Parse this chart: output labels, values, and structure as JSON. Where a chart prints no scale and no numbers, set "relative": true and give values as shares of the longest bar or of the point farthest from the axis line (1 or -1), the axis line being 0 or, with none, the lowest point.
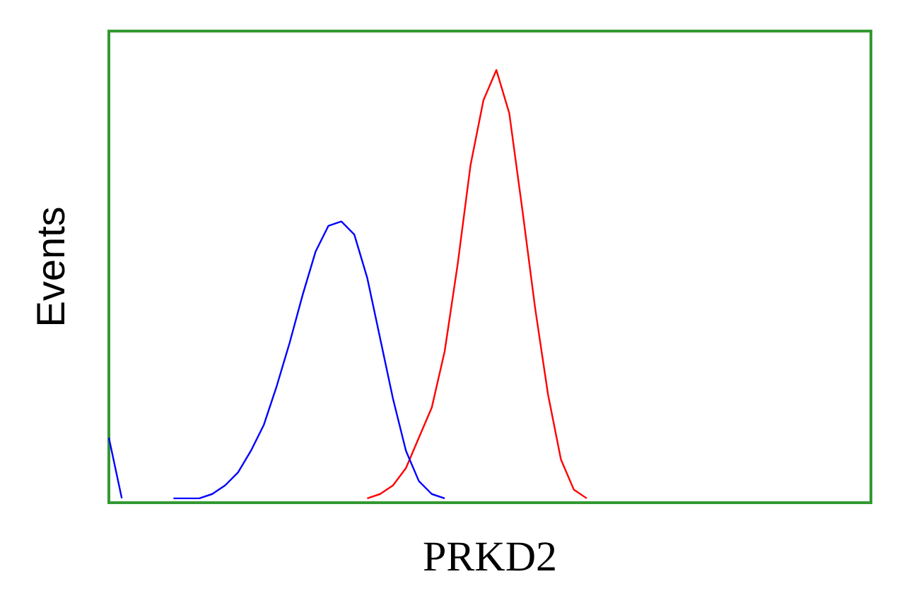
{
  "chart_data": {
    "type": "line",
    "xlabel": "PRKD2",
    "ylabel": "Events",
    "relative": true,
    "marker": "none",
    "grid": false,
    "legend": false,
    "categories": [
      null,
      null,
      null,
      null,
      null,
      null,
      null,
      null,
      null,
      null,
      null,
      null,
      null,
      null,
      null,
      null,
      null,
      null,
      null,
      null,
      null,
      null,
      null,
      null,
      null,
      null,
      null,
      null,
      null,
      null,
      null,
      null,
      null,
      null,
      null,
      null,
      null,
      null,
      null,
      null,
      null,
      null,
      null,
      null,
      null,
      null,
      null,
      null,
      null,
      null,
      null,
      null,
      null,
      null,
      null,
      null,
      null,
      null,
      null,
      null
    ],
    "series": [
      {
        "color": "#0000ff",
        "values": [
          0.15,
          0.01,
          null,
          null,
          null,
          0.01,
          0.01,
          0.01,
          0.02,
          0.04,
          0.07,
          0.12,
          0.18,
          0.27,
          0.37,
          0.48,
          0.58,
          0.64,
          0.65,
          0.62,
          0.52,
          0.38,
          0.24,
          0.12,
          0.05,
          0.02,
          0.01,
          null,
          null,
          null,
          null,
          null,
          null,
          null,
          null,
          null,
          null,
          null,
          null,
          null,
          null,
          null,
          null,
          null,
          null,
          null,
          null,
          null,
          null,
          null,
          null,
          null,
          null,
          null,
          null,
          null,
          null,
          null,
          null,
          null
        ]
      },
      {
        "color": "#ff0000",
        "values": [
          null,
          null,
          null,
          null,
          null,
          null,
          null,
          null,
          null,
          null,
          null,
          null,
          null,
          null,
          null,
          null,
          null,
          null,
          null,
          null,
          0.01,
          0.02,
          0.04,
          0.08,
          0.15,
          0.22,
          0.35,
          0.55,
          0.78,
          0.93,
          1,
          0.9,
          0.68,
          0.45,
          0.25,
          0.1,
          0.03,
          0.01,
          null,
          null,
          null,
          null,
          null,
          null,
          null,
          null,
          null,
          null,
          null,
          null,
          null,
          null,
          null,
          null,
          null,
          null,
          null,
          null,
          null,
          null
        ]
      }
    ]
  }
}
